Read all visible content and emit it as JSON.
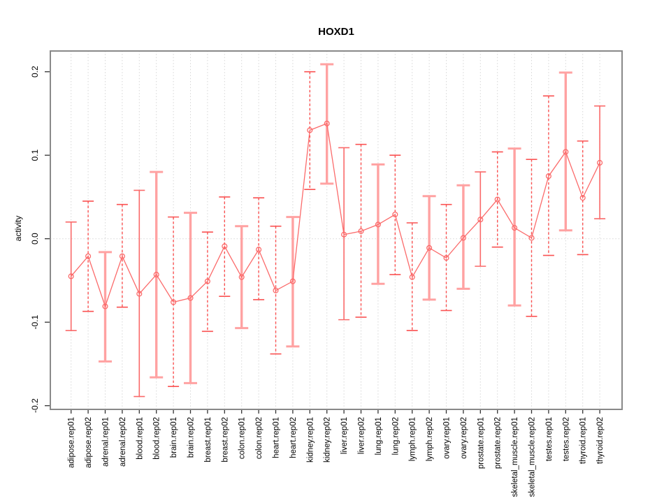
{
  "title": "HOXD1",
  "ylabel": "activity",
  "colors": {
    "line": "#fb6b6b",
    "point": "#fb6b6b",
    "errorbar_solid": "#fa6a6a",
    "errorbar_dashed": "#fa5252",
    "errorbar_thick": "#ffa2a2",
    "frame": "#898989",
    "axis_tick": "#333333",
    "grid": "#d6d6d6",
    "text": "#000000"
  },
  "chart_data": {
    "type": "line",
    "title": "HOXD1",
    "xlabel": "",
    "ylabel": "activity",
    "ylim": [
      -0.205,
      0.225
    ],
    "yticks": [
      -0.2,
      -0.1,
      0.0,
      0.1,
      0.2
    ],
    "legend": "none",
    "grid": "dotted vertical gridline at every category; dotted horizontal line at y=0",
    "point_style": "open-circle",
    "categories": [
      "adipose.rep01",
      "adipose.rep02",
      "adrenal.rep01",
      "adrenal.rep02",
      "blood.rep01",
      "blood.rep02",
      "brain.rep01",
      "brain.rep02",
      "breast.rep01",
      "breast.rep02",
      "colon.rep01",
      "colon.rep02",
      "heart.rep01",
      "heart.rep02",
      "kidney.rep01",
      "kidney.rep02",
      "liver.rep01",
      "liver.rep02",
      "lung.rep01",
      "lung.rep02",
      "lymph.rep01",
      "lymph.rep02",
      "ovary.rep01",
      "ovary.rep02",
      "prostate.rep01",
      "prostate.rep02",
      "skeletal_muscle.rep01",
      "skeletal_muscle.rep02",
      "testes.rep01",
      "testes.rep02",
      "thyroid.rep01",
      "thyroid.rep02"
    ],
    "series": [
      {
        "name": "HOXD1 activity",
        "values": [
          -0.045,
          -0.021,
          -0.081,
          -0.021,
          -0.066,
          -0.043,
          -0.076,
          -0.071,
          -0.051,
          -0.009,
          -0.046,
          -0.013,
          -0.062,
          -0.051,
          0.13,
          0.138,
          0.005,
          0.009,
          0.017,
          0.029,
          -0.046,
          -0.011,
          -0.023,
          0.001,
          0.023,
          0.047,
          0.013,
          0.001,
          0.075,
          0.104,
          0.049,
          0.091
        ],
        "error_low": [
          -0.11,
          -0.087,
          -0.147,
          -0.082,
          -0.189,
          -0.166,
          -0.177,
          -0.173,
          -0.111,
          -0.069,
          -0.107,
          -0.073,
          -0.138,
          -0.129,
          0.059,
          0.066,
          -0.097,
          -0.094,
          -0.054,
          -0.043,
          -0.11,
          -0.073,
          -0.086,
          -0.06,
          -0.033,
          -0.01,
          -0.08,
          -0.093,
          -0.02,
          0.01,
          -0.019,
          0.024
        ],
        "error_high": [
          0.02,
          0.045,
          -0.016,
          0.041,
          0.058,
          0.08,
          0.026,
          0.031,
          0.008,
          0.05,
          0.015,
          0.049,
          0.015,
          0.026,
          0.2,
          0.209,
          0.109,
          0.113,
          0.089,
          0.1,
          0.019,
          0.051,
          0.041,
          0.064,
          0.08,
          0.104,
          0.108,
          0.095,
          0.171,
          0.199,
          0.117,
          0.159
        ],
        "bar_styles": [
          "solid",
          "dashed",
          "thick",
          "dashed",
          "solid",
          "thick",
          "dashed",
          "thick",
          "dashed",
          "dashed",
          "thick",
          "dashed",
          "dashed",
          "thick",
          "dashed",
          "thick",
          "solid",
          "dashed",
          "thick",
          "dashed",
          "dashed",
          "thick",
          "dashed",
          "thick",
          "solid",
          "dashed",
          "thick",
          "dashed",
          "dashed",
          "thick",
          "dashed",
          "solid"
        ]
      }
    ]
  }
}
